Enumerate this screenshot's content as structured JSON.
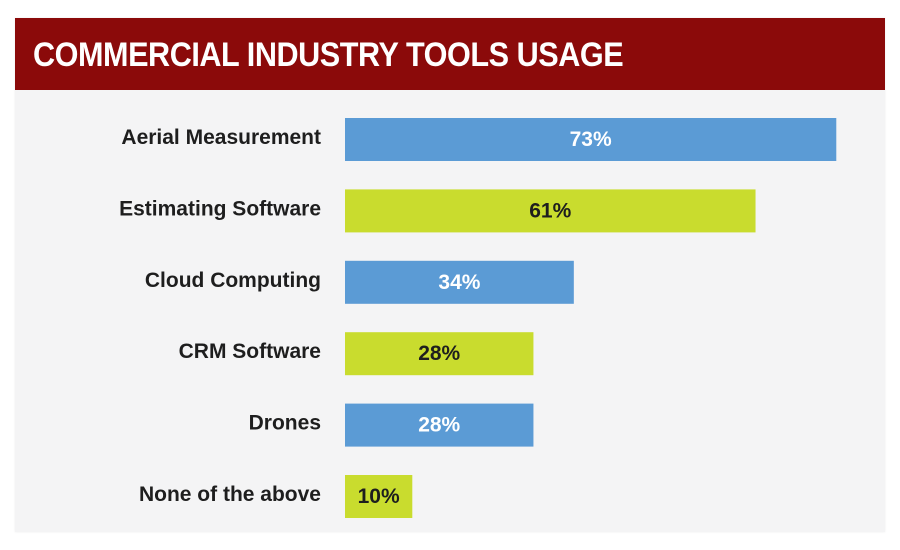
{
  "chart_data": {
    "type": "bar",
    "orientation": "horizontal",
    "title": "COMMERCIAL INDUSTRY TOOLS USAGE",
    "categories": [
      "Aerial Measurement",
      "Estimating Software",
      "Cloud Computing",
      "CRM Software",
      "Drones",
      "None of the above"
    ],
    "values": [
      73,
      61,
      34,
      28,
      28,
      10
    ],
    "value_labels": [
      "73%",
      "61%",
      "34%",
      "28%",
      "28%",
      "10%"
    ],
    "unit": "%",
    "xlim": [
      0,
      100
    ],
    "xlabel": "",
    "ylabel": "",
    "grid": false,
    "legend": "none",
    "colors": {
      "header_background": "#8b0a0a",
      "header_text": "#ffffff",
      "card_background": "#f4f4f5",
      "bar_colors": [
        "#5b9bd5",
        "#c9dc2e",
        "#5b9bd5",
        "#c9dc2e",
        "#5b9bd5",
        "#c9dc2e"
      ],
      "value_label_colors": [
        "#ffffff",
        "#1e1e1e",
        "#ffffff",
        "#1e1e1e",
        "#ffffff",
        "#1e1e1e"
      ],
      "category_text": "#1e1e1e"
    }
  }
}
